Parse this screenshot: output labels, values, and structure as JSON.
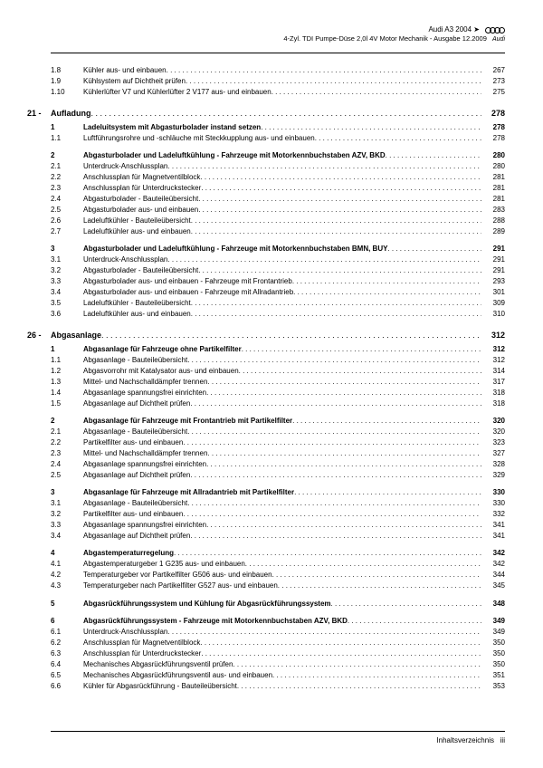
{
  "header": {
    "model": "Audi A3 2004 ➤",
    "subtitle": "4-Zyl. TDI Pumpe-Düse 2,0l 4V Motor Mechanik - Ausgabe 12.2009",
    "brand": "Audi"
  },
  "initial_rows": [
    {
      "num": "1.8",
      "label": "Kühler aus- und einbauen",
      "pg": "267"
    },
    {
      "num": "1.9",
      "label": "Kühlsystem auf Dichtheit prüfen",
      "pg": "273"
    },
    {
      "num": "1.10",
      "label": "Kühlerlüfter V7 und Kühlerlüfter 2 V177 aus- und einbauen",
      "pg": "275"
    }
  ],
  "chapters": [
    {
      "num": "21 -",
      "title": "Aufladung",
      "pg": "278",
      "groups": [
        {
          "rows": [
            {
              "num": "1",
              "label": "Ladeluitsystem mit Abgasturbolader instand setzen",
              "pg": "278",
              "b": true
            },
            {
              "num": "1.1",
              "label": "Luftführungsrohre und -schläuche mit Steckkupplung aus- und einbauen",
              "pg": "278"
            }
          ]
        },
        {
          "rows": [
            {
              "num": "2",
              "label": "Abgasturbolader und Ladeluftkühlung - Fahrzeuge mit Motorkennbuchstaben AZV, BKD",
              "pg": "280",
              "b": true,
              "wrap": true
            },
            {
              "num": "2.1",
              "label": "Unterdruck-Anschlussplan",
              "pg": "280"
            },
            {
              "num": "2.2",
              "label": "Anschlussplan für Magnetventilblock",
              "pg": "281"
            },
            {
              "num": "2.3",
              "label": "Anschlussplan für Unterdruckstecker",
              "pg": "281"
            },
            {
              "num": "2.4",
              "label": "Abgasturbolader - Bauteileübersicht",
              "pg": "281"
            },
            {
              "num": "2.5",
              "label": "Abgasturbolader aus- und einbauen",
              "pg": "283"
            },
            {
              "num": "2.6",
              "label": "Ladeluftkühler - Bauteileübersicht",
              "pg": "288"
            },
            {
              "num": "2.7",
              "label": "Ladeluftkühler aus- und einbauen",
              "pg": "289"
            }
          ]
        },
        {
          "rows": [
            {
              "num": "3",
              "label": "Abgasturbolader und Ladeluftkühlung - Fahrzeuge mit Motorkennbuchstaben BMN, BUY",
              "pg": "291",
              "b": true,
              "wrap": true
            },
            {
              "num": "3.1",
              "label": "Unterdruck-Anschlussplan",
              "pg": "291"
            },
            {
              "num": "3.2",
              "label": "Abgasturbolader - Bauteileübersicht",
              "pg": "291"
            },
            {
              "num": "3.3",
              "label": "Abgasturbolader aus- und einbauen - Fahrzeuge mit Frontantrieb",
              "pg": "293"
            },
            {
              "num": "3.4",
              "label": "Abgasturbolader aus- und einbauen - Fahrzeuge mit Allradantrieb",
              "pg": "301"
            },
            {
              "num": "3.5",
              "label": "Ladeluftkühler - Bauteileübersicht",
              "pg": "309"
            },
            {
              "num": "3.6",
              "label": "Ladeluftkühler aus- und einbauen",
              "pg": "310"
            }
          ]
        }
      ]
    },
    {
      "num": "26 -",
      "title": "Abgasanlage",
      "pg": "312",
      "groups": [
        {
          "rows": [
            {
              "num": "1",
              "label": "Abgasanlage für Fahrzeuge ohne Partikelfilter",
              "pg": "312",
              "b": true
            },
            {
              "num": "1.1",
              "label": "Abgasanlage - Bauteileübersicht",
              "pg": "312"
            },
            {
              "num": "1.2",
              "label": "Abgasvorrohr mit Katalysator aus- und einbauen",
              "pg": "314"
            },
            {
              "num": "1.3",
              "label": "Mittel- und Nachschalldämpfer trennen",
              "pg": "317"
            },
            {
              "num": "1.4",
              "label": "Abgasanlage spannungsfrei einrichten",
              "pg": "318"
            },
            {
              "num": "1.5",
              "label": "Abgasanlage auf Dichtheit prüfen",
              "pg": "318"
            }
          ]
        },
        {
          "rows": [
            {
              "num": "2",
              "label": "Abgasanlage für Fahrzeuge mit Frontantrieb mit Partikelfilter",
              "pg": "320",
              "b": true
            },
            {
              "num": "2.1",
              "label": "Abgasanlage - Bauteileübersicht",
              "pg": "320"
            },
            {
              "num": "2.2",
              "label": "Partikelfilter aus- und einbauen",
              "pg": "323"
            },
            {
              "num": "2.3",
              "label": "Mittel- und Nachschalldämpfer trennen",
              "pg": "327"
            },
            {
              "num": "2.4",
              "label": "Abgasanlage spannungsfrei einrichten",
              "pg": "328"
            },
            {
              "num": "2.5",
              "label": "Abgasanlage auf Dichtheit prüfen",
              "pg": "329"
            }
          ]
        },
        {
          "rows": [
            {
              "num": "3",
              "label": "Abgasanlage für Fahrzeuge mit Allradantrieb mit Partikelfilter",
              "pg": "330",
              "b": true
            },
            {
              "num": "3.1",
              "label": "Abgasanlage - Bauteileübersicht",
              "pg": "330"
            },
            {
              "num": "3.2",
              "label": "Partikelfilter aus- und einbauen",
              "pg": "332"
            },
            {
              "num": "3.3",
              "label": "Abgasanlage spannungsfrei einrichten",
              "pg": "341"
            },
            {
              "num": "3.4",
              "label": "Abgasanlage auf Dichtheit prüfen",
              "pg": "341"
            }
          ]
        },
        {
          "rows": [
            {
              "num": "4",
              "label": "Abgastemperaturregelung",
              "pg": "342",
              "b": true
            },
            {
              "num": "4.1",
              "label": "Abgastemperaturgeber 1 G235 aus- und einbauen",
              "pg": "342"
            },
            {
              "num": "4.2",
              "label": "Temperaturgeber vor Partikelfilter G506 aus- und einbauen",
              "pg": "344"
            },
            {
              "num": "4.3",
              "label": "Temperaturgeber nach Partikelfilter G527 aus- und einbauen",
              "pg": "345"
            }
          ]
        },
        {
          "rows": [
            {
              "num": "5",
              "label": "Abgasrückführungssystem und Kühlung für Abgasrückführungssystem",
              "pg": "348",
              "b": true
            }
          ]
        },
        {
          "rows": [
            {
              "num": "6",
              "label": "Abgasrückführungssystem - Fahrzeuge mit Motorkennbuchstaben AZV, BKD",
              "pg": "349",
              "b": true
            },
            {
              "num": "6.1",
              "label": "Unterdruck-Anschlussplan",
              "pg": "349"
            },
            {
              "num": "6.2",
              "label": "Anschlussplan für Magnetventilblock",
              "pg": "350"
            },
            {
              "num": "6.3",
              "label": "Anschlussplan für Unterdruckstecker",
              "pg": "350"
            },
            {
              "num": "6.4",
              "label": "Mechanisches Abgasrückführungsventil prüfen",
              "pg": "350"
            },
            {
              "num": "6.5",
              "label": "Mechanisches Abgasrückführungsventil aus- und einbauen",
              "pg": "351"
            },
            {
              "num": "6.6",
              "label": "Kühler für Abgasrückführung - Bauteileübersicht",
              "pg": "353"
            }
          ]
        }
      ]
    }
  ],
  "footer": {
    "label": "Inhaltsverzeichnis",
    "page": "iii"
  }
}
